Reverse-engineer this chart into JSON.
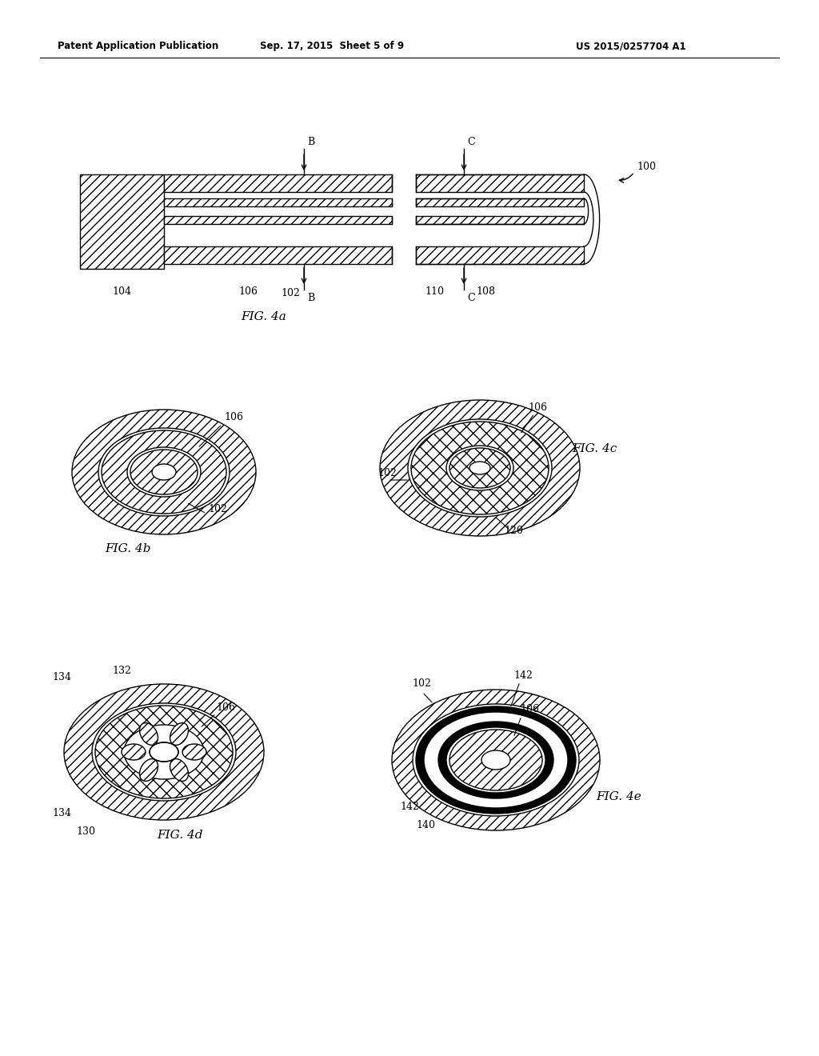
{
  "header_left": "Patent Application Publication",
  "header_center": "Sep. 17, 2015  Sheet 5 of 9",
  "header_right": "US 2015/0257704 A1",
  "fig4a_label": "FIG. 4a",
  "fig4b_label": "FIG. 4b",
  "fig4c_label": "FIG. 4c",
  "fig4d_label": "FIG. 4d",
  "fig4e_label": "FIG. 4e",
  "bg_color": "#ffffff",
  "line_color": "#000000"
}
